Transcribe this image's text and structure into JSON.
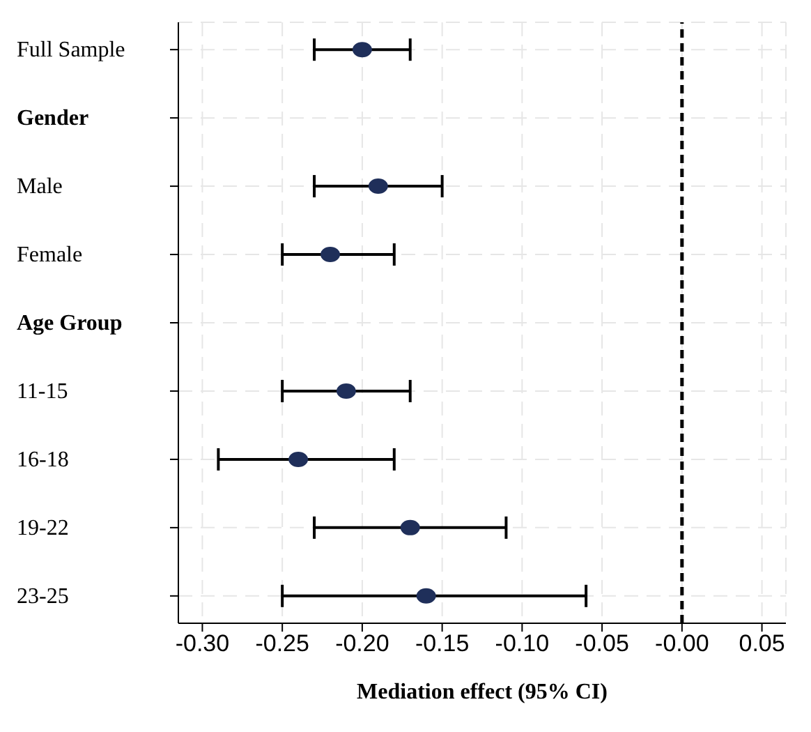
{
  "chart_data": {
    "type": "scatter",
    "xlabel": "Mediation effect (95% CI)",
    "orientation": "horizontal",
    "categories": [
      "Full Sample",
      "Gender",
      "Male",
      "Female",
      "Age Group",
      "11-15",
      "16-18",
      "19-22",
      "23-25"
    ],
    "series": [
      {
        "color": "#1f2f5a",
        "values": [
          -0.2,
          null,
          -0.19,
          -0.22,
          null,
          -0.21,
          -0.24,
          -0.17,
          -0.16
        ],
        "errors": [
          [
            -0.23,
            -0.17
          ],
          null,
          [
            -0.23,
            -0.15
          ],
          [
            -0.25,
            -0.18
          ],
          null,
          [
            -0.25,
            -0.17
          ],
          [
            -0.29,
            -0.18
          ],
          [
            -0.23,
            -0.11
          ],
          [
            -0.25,
            -0.06
          ]
        ]
      }
    ],
    "xlim": [
      -0.315,
      0.065
    ],
    "xticks": [
      {
        "value": -0.3,
        "label": "-0.30"
      },
      {
        "value": -0.25,
        "label": "-0.25"
      },
      {
        "value": -0.2,
        "label": "-0.20"
      },
      {
        "value": -0.15,
        "label": "-0.15"
      },
      {
        "value": -0.1,
        "label": "-0.10"
      },
      {
        "value": -0.05,
        "label": "-0.05"
      },
      {
        "value": 0,
        "label": "-0.00"
      },
      {
        "value": 0.05,
        "label": "0.05"
      }
    ],
    "ref_lines": [
      {
        "axis": "x",
        "value": 0,
        "color": "#000000",
        "line_style": "dashed"
      }
    ],
    "grid": true,
    "marker": "circle"
  }
}
